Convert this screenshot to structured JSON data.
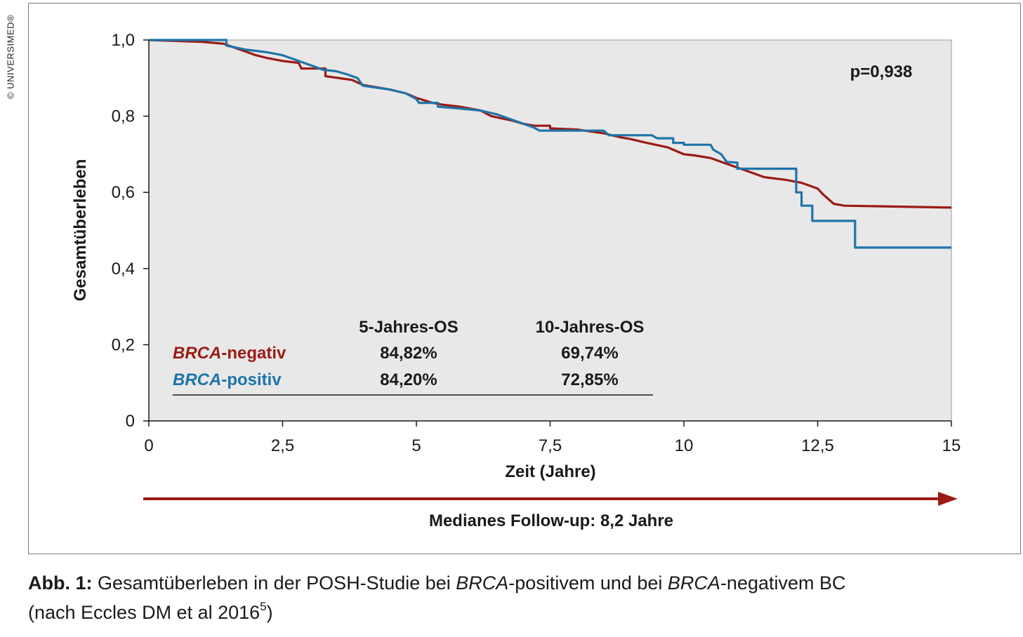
{
  "copyright": "© UNIVERSIMED®",
  "caption": {
    "label": "Abb. 1:",
    "part1": " Gesamtüberleben in der POSH-Studie bei ",
    "brca1": "BRCA",
    "part2": "-positivem und bei ",
    "brca2": "BRCA",
    "part3": "-negativem BC",
    "part4": "(nach Eccles DM et al 2016",
    "ref": "5",
    "part5": ")"
  },
  "chart_data": {
    "type": "line",
    "step": true,
    "xlabel": "Zeit (Jahre)",
    "ylabel": "Gesamtüberleben",
    "xlim": [
      0,
      15
    ],
    "ylim": [
      0,
      1
    ],
    "x_ticks": [
      0,
      2.5,
      5,
      7.5,
      10,
      12.5,
      15
    ],
    "x_tick_labels": [
      "0",
      "2,5",
      "5",
      "7,5",
      "10",
      "12,5",
      "15"
    ],
    "y_ticks": [
      0,
      0.2,
      0.4,
      0.6,
      0.8,
      1.0
    ],
    "y_tick_labels": [
      "0",
      "0,2",
      "0,4",
      "0,6",
      "0,8",
      "1,0"
    ],
    "grid": false,
    "annotation": "p=0,938",
    "followup": "Medianes Follow-up: 8,2 Jahre",
    "colors": {
      "brca_negativ": "#9b1b15",
      "brca_positiv": "#1e74a8",
      "background": "#e8e8e8",
      "arrow": "#9b1b15"
    },
    "series": [
      {
        "key": "brca_negativ",
        "name_italic": "BRCA",
        "name_rest": "-negativ",
        "points": [
          [
            0,
            1
          ],
          [
            1.0,
            0.995
          ],
          [
            1.4,
            0.99
          ],
          [
            1.6,
            0.98
          ],
          [
            1.8,
            0.97
          ],
          [
            2.0,
            0.96
          ],
          [
            2.2,
            0.953
          ],
          [
            2.5,
            0.945
          ],
          [
            2.8,
            0.94
          ],
          [
            2.85,
            0.925
          ],
          [
            3.3,
            0.925
          ],
          [
            3.3,
            0.905
          ],
          [
            3.8,
            0.895
          ],
          [
            4.0,
            0.882
          ],
          [
            4.5,
            0.87
          ],
          [
            4.8,
            0.86
          ],
          [
            5.0,
            0.848
          ],
          [
            5.3,
            0.835
          ],
          [
            5.5,
            0.83
          ],
          [
            5.8,
            0.825
          ],
          [
            6.2,
            0.815
          ],
          [
            6.4,
            0.8
          ],
          [
            6.8,
            0.788
          ],
          [
            7.0,
            0.78
          ],
          [
            7.2,
            0.775
          ],
          [
            7.5,
            0.775
          ],
          [
            7.5,
            0.768
          ],
          [
            8.0,
            0.765
          ],
          [
            8.5,
            0.755
          ],
          [
            8.8,
            0.745
          ],
          [
            9.0,
            0.74
          ],
          [
            9.3,
            0.73
          ],
          [
            9.7,
            0.718
          ],
          [
            10.0,
            0.7
          ],
          [
            10.2,
            0.697
          ],
          [
            10.5,
            0.69
          ],
          [
            10.8,
            0.675
          ],
          [
            11.2,
            0.655
          ],
          [
            11.5,
            0.64
          ],
          [
            11.9,
            0.633
          ],
          [
            12.2,
            0.625
          ],
          [
            12.5,
            0.61
          ],
          [
            12.6,
            0.595
          ],
          [
            12.8,
            0.57
          ],
          [
            13.0,
            0.565
          ],
          [
            15.0,
            0.56
          ]
        ]
      },
      {
        "key": "brca_positiv",
        "name_italic": "BRCA",
        "name_rest": "-positiv",
        "points": [
          [
            0,
            1
          ],
          [
            1.45,
            1
          ],
          [
            1.45,
            0.985
          ],
          [
            1.8,
            0.975
          ],
          [
            2.2,
            0.968
          ],
          [
            2.5,
            0.96
          ],
          [
            2.7,
            0.95
          ],
          [
            2.9,
            0.94
          ],
          [
            3.1,
            0.93
          ],
          [
            3.25,
            0.922
          ],
          [
            3.5,
            0.918
          ],
          [
            3.7,
            0.91
          ],
          [
            3.9,
            0.9
          ],
          [
            4.0,
            0.88
          ],
          [
            4.5,
            0.87
          ],
          [
            4.8,
            0.86
          ],
          [
            5.0,
            0.845
          ],
          [
            5.05,
            0.835
          ],
          [
            5.4,
            0.835
          ],
          [
            5.4,
            0.825
          ],
          [
            5.8,
            0.82
          ],
          [
            6.2,
            0.815
          ],
          [
            6.5,
            0.805
          ],
          [
            6.8,
            0.79
          ],
          [
            7.2,
            0.77
          ],
          [
            7.3,
            0.762
          ],
          [
            8.5,
            0.762
          ],
          [
            8.6,
            0.75
          ],
          [
            9.4,
            0.75
          ],
          [
            9.5,
            0.742
          ],
          [
            9.8,
            0.742
          ],
          [
            9.8,
            0.73
          ],
          [
            10.0,
            0.73
          ],
          [
            10.0,
            0.725
          ],
          [
            10.5,
            0.725
          ],
          [
            10.55,
            0.712
          ],
          [
            10.7,
            0.7
          ],
          [
            10.8,
            0.68
          ],
          [
            11.0,
            0.678
          ],
          [
            11.0,
            0.662
          ],
          [
            12.1,
            0.662
          ],
          [
            12.1,
            0.6
          ],
          [
            12.2,
            0.6
          ],
          [
            12.2,
            0.565
          ],
          [
            12.4,
            0.565
          ],
          [
            12.4,
            0.525
          ],
          [
            13.2,
            0.525
          ],
          [
            13.2,
            0.455
          ],
          [
            15.0,
            0.455
          ]
        ]
      }
    ],
    "table": {
      "headers": [
        "5-Jahres-OS",
        "10-Jahres-OS"
      ],
      "rows": [
        {
          "key": "brca_negativ",
          "values": [
            "84,82%",
            "69,74%"
          ]
        },
        {
          "key": "brca_positiv",
          "values": [
            "84,20%",
            "72,85%"
          ]
        }
      ]
    }
  }
}
